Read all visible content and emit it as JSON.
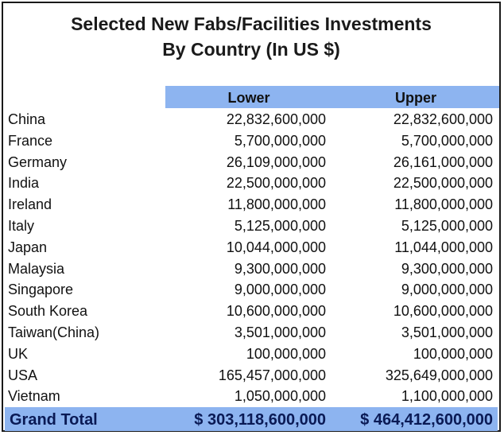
{
  "title": {
    "line1": "Selected New Fabs/Facilities Investments",
    "line2": "By Country (In US $)"
  },
  "columns": {
    "lower": "Lower",
    "upper": "Upper"
  },
  "rows": [
    {
      "country": "China",
      "lower": "22,832,600,000",
      "upper": "22,832,600,000"
    },
    {
      "country": "France",
      "lower": "5,700,000,000",
      "upper": "5,700,000,000"
    },
    {
      "country": "Germany",
      "lower": "26,109,000,000",
      "upper": "26,161,000,000"
    },
    {
      "country": "India",
      "lower": "22,500,000,000",
      "upper": "22,500,000,000"
    },
    {
      "country": "Ireland",
      "lower": "11,800,000,000",
      "upper": "11,800,000,000"
    },
    {
      "country": "Italy",
      "lower": "5,125,000,000",
      "upper": "5,125,000,000"
    },
    {
      "country": "Japan",
      "lower": "10,044,000,000",
      "upper": "11,044,000,000"
    },
    {
      "country": "Malaysia",
      "lower": "9,300,000,000",
      "upper": "9,300,000,000"
    },
    {
      "country": "Singapore",
      "lower": "9,000,000,000",
      "upper": "9,000,000,000"
    },
    {
      "country": "South Korea",
      "lower": "10,600,000,000",
      "upper": "10,600,000,000"
    },
    {
      "country": "Taiwan(China)",
      "lower": "3,501,000,000",
      "upper": "3,501,000,000"
    },
    {
      "country": "UK",
      "lower": "100,000,000",
      "upper": "100,000,000"
    },
    {
      "country": "USA",
      "lower": "165,457,000,000",
      "upper": "325,649,000,000"
    },
    {
      "country": "Vietnam",
      "lower": "1,050,000,000",
      "upper": "1,100,000,000"
    }
  ],
  "total": {
    "label": "Grand Total",
    "lower": "$ 303,118,600,000",
    "upper": "$ 464,412,600,000"
  },
  "colors": {
    "header_fill": "#8db4f0",
    "total_text": "#0a1a55"
  }
}
